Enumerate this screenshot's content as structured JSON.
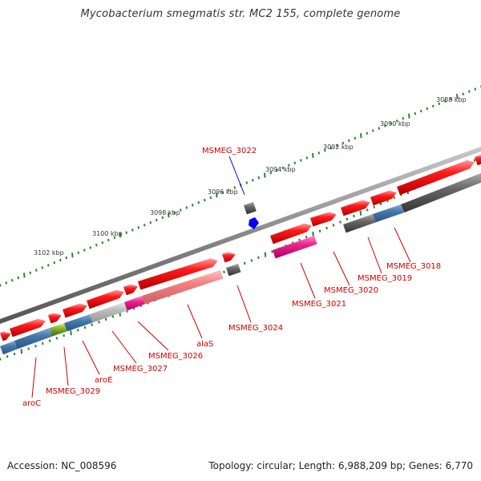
{
  "title": "Mycobacterium smegmatis str. MC2 155, complete genome",
  "footer": {
    "accession": "Accession: NC_008596",
    "summary": "Topology: circular; Length: 6,988,209 bp; Genes: 6,770"
  },
  "colors": {
    "forward_gene": "#ee1111",
    "pink_gene": "#ee2288",
    "light_red": "#f08080",
    "gray_gene": "#666666",
    "blue_gene": "#4477aa",
    "light_gray": "#bbbbbb",
    "backbone": "#888888",
    "tick": "#228822",
    "label_red": "#cc0000",
    "label_blue": "#0000cc",
    "highlight": "#0000ff"
  },
  "scale": {
    "unit": "kbp",
    "labels": [
      "3088 kbp",
      "3090 kbp",
      "3092 kbp",
      "3094 kbp",
      "3096 kbp",
      "3098 kbp",
      "3100 kbp",
      "3102 kbp"
    ]
  },
  "gene_labels": [
    {
      "text": "MSMEG_3022",
      "color": "label_blue"
    },
    {
      "text": "MSMEG_3018",
      "color": "label_red"
    },
    {
      "text": "MSMEG_3019",
      "color": "label_red"
    },
    {
      "text": "MSMEG_3020",
      "color": "label_red"
    },
    {
      "text": "MSMEG_3021",
      "color": "label_red"
    },
    {
      "text": "MSMEG_3024",
      "color": "label_red"
    },
    {
      "text": "alaS",
      "color": "label_red"
    },
    {
      "text": "MSMEG_3026",
      "color": "label_red"
    },
    {
      "text": "MSMEG_3027",
      "color": "label_red"
    },
    {
      "text": "aroE",
      "color": "label_red"
    },
    {
      "text": "MSMEG_3029",
      "color": "label_red"
    },
    {
      "text": "aroC",
      "color": "label_red"
    }
  ]
}
